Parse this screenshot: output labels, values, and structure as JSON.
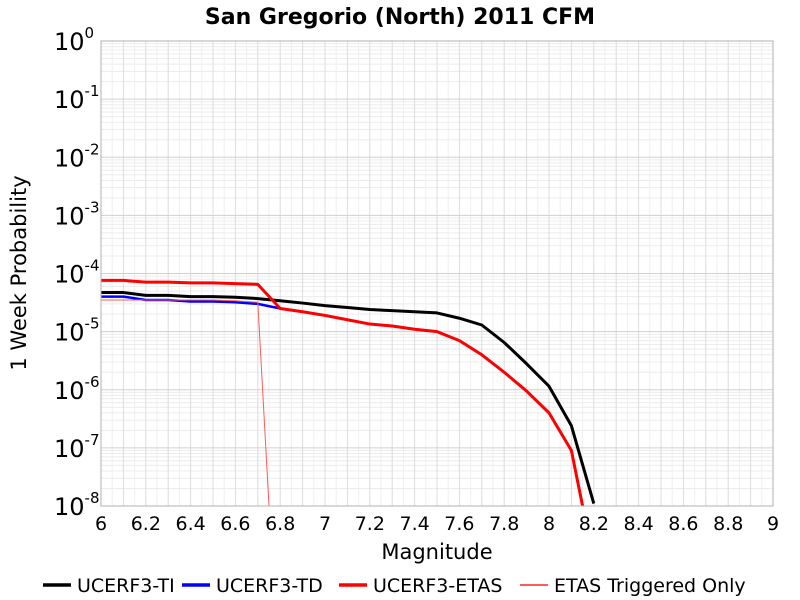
{
  "chart_data": {
    "type": "line",
    "title": "San Gregorio (North) 2011 CFM",
    "xlabel": "Magnitude",
    "ylabel": "1 Week Probability",
    "xlim": [
      6,
      9
    ],
    "ylim": [
      1e-08,
      1
    ],
    "yscale": "log",
    "grid": true,
    "legend_position": "bottom",
    "x_ticks": [
      "6",
      "6.2",
      "6.4",
      "6.6",
      "6.8",
      "7",
      "7.2",
      "7.4",
      "7.6",
      "7.8",
      "8",
      "8.2",
      "8.4",
      "8.6",
      "8.8",
      "9"
    ],
    "y_ticks": [
      {
        "base": "10",
        "exp": "0"
      },
      {
        "base": "10",
        "exp": "-1"
      },
      {
        "base": "10",
        "exp": "-2"
      },
      {
        "base": "10",
        "exp": "-3"
      },
      {
        "base": "10",
        "exp": "-4"
      },
      {
        "base": "10",
        "exp": "-5"
      },
      {
        "base": "10",
        "exp": "-6"
      },
      {
        "base": "10",
        "exp": "-7"
      },
      {
        "base": "10",
        "exp": "-8"
      }
    ],
    "series": [
      {
        "name": "UCERF3-TI",
        "color": "#000000",
        "x": [
          6.0,
          6.1,
          6.2,
          6.3,
          6.4,
          6.5,
          6.6,
          6.7,
          6.8,
          6.9,
          7.0,
          7.1,
          7.2,
          7.3,
          7.4,
          7.5,
          7.6,
          7.7,
          7.8,
          7.9,
          8.0,
          8.1,
          8.2
        ],
        "y": [
          4.7e-05,
          4.7e-05,
          4.2e-05,
          4.2e-05,
          4e-05,
          4e-05,
          3.9e-05,
          3.7e-05,
          3.4e-05,
          3.1e-05,
          2.8e-05,
          2.6e-05,
          2.4e-05,
          2.3e-05,
          2.2e-05,
          2.1e-05,
          1.7e-05,
          1.3e-05,
          6.5e-06,
          2.8e-06,
          1.15e-06,
          2.4e-07,
          1.1e-08
        ]
      },
      {
        "name": "UCERF3-TD",
        "color": "#0000ff",
        "x": [
          6.0,
          6.1,
          6.2,
          6.3,
          6.4,
          6.5,
          6.6,
          6.7,
          6.8,
          6.9,
          7.0,
          7.1,
          7.2,
          7.3,
          7.4,
          7.5,
          7.6,
          7.7,
          7.8,
          7.9,
          8.0,
          8.1,
          8.15
        ],
        "y": [
          4e-05,
          4e-05,
          3.5e-05,
          3.5e-05,
          3.3e-05,
          3.3e-05,
          3.2e-05,
          3e-05,
          2.5e-05,
          2.2e-05,
          1.9e-05,
          1.6e-05,
          1.35e-05,
          1.25e-05,
          1.1e-05,
          1e-05,
          7e-06,
          4e-06,
          2e-06,
          9.5e-07,
          4e-07,
          9e-08,
          1e-08
        ]
      },
      {
        "name": "UCERF3-ETAS",
        "color": "#ff0000",
        "x": [
          6.0,
          6.1,
          6.2,
          6.3,
          6.4,
          6.5,
          6.6,
          6.7,
          6.8,
          6.9,
          7.0,
          7.1,
          7.2,
          7.3,
          7.4,
          7.5,
          7.6,
          7.7,
          7.8,
          7.9,
          8.0,
          8.1,
          8.15
        ],
        "y": [
          7.6e-05,
          7.6e-05,
          7.1e-05,
          7.1e-05,
          6.9e-05,
          6.9e-05,
          6.7e-05,
          6.5e-05,
          2.5e-05,
          2.2e-05,
          1.9e-05,
          1.6e-05,
          1.35e-05,
          1.25e-05,
          1.1e-05,
          1e-05,
          7e-06,
          4e-06,
          2e-06,
          9.5e-07,
          4e-07,
          9e-08,
          1e-08
        ]
      },
      {
        "name": "ETAS Triggered Only",
        "color": "#ff5a5a",
        "x": [
          6.0,
          6.1,
          6.2,
          6.3,
          6.4,
          6.5,
          6.6,
          6.7,
          6.75
        ],
        "y": [
          3.5e-05,
          3.5e-05,
          3.5e-05,
          3.5e-05,
          3.5e-05,
          3.5e-05,
          3.4e-05,
          3.2e-05,
          1e-08
        ]
      }
    ]
  }
}
